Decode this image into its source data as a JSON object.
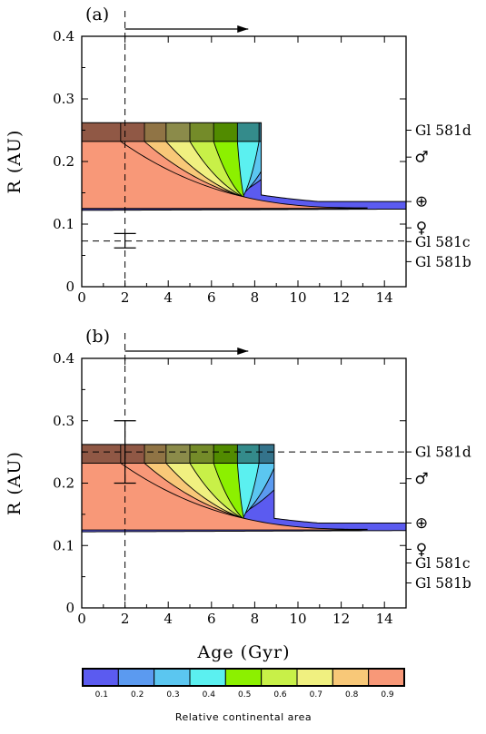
{
  "chart_data": [
    {
      "type": "area",
      "panel_label": "(a)",
      "xlabel": "",
      "ylabel": "R (AU)",
      "xlim": [
        0,
        15
      ],
      "ylim": [
        0,
        0.4
      ],
      "xticks": [
        "0",
        "2",
        "4",
        "6",
        "8",
        "10",
        "12",
        "14"
      ],
      "yticks": [
        "0",
        "0.1",
        "0.2",
        "0.3",
        "0.4"
      ],
      "age_marker": 2,
      "age_arrow_to": 7.7,
      "zone": {
        "inner_r": 0.122,
        "outer_r_start": 0.262,
        "outer_r_end": 0.136,
        "end_age": 15,
        "band_top": 0.262,
        "band_bottom": 0.232,
        "band_end_age": 8.3
      },
      "contour_ages": [
        1.8,
        2.9,
        3.9,
        5.0,
        6.1,
        7.2,
        8.2,
        9.0,
        10.0
      ],
      "contour_tip_ages": [
        3.9,
        5.6,
        6.7,
        7.8,
        8.8,
        9.9,
        11.0,
        12.1,
        13.2
      ],
      "planet_line": {
        "r": 0.073,
        "error": [
          0.062,
          0.085
        ]
      },
      "planet_labels": [
        {
          "text": "Gl 581d",
          "r": 0.25
        },
        {
          "text": "♂",
          "r": 0.207
        },
        {
          "text": "⊕",
          "r": 0.136
        },
        {
          "text": "♀",
          "r": 0.094
        },
        {
          "text": "Gl 581c",
          "r": 0.072
        },
        {
          "text": "Gl 581b",
          "r": 0.04
        }
      ]
    },
    {
      "type": "area",
      "panel_label": "(b)",
      "xlabel": "Age (Gyr)",
      "ylabel": "R (AU)",
      "xlim": [
        0,
        15
      ],
      "ylim": [
        0,
        0.4
      ],
      "xticks": [
        "0",
        "2",
        "4",
        "6",
        "8",
        "10",
        "12",
        "14"
      ],
      "yticks": [
        "0",
        "0.1",
        "0.2",
        "0.3",
        "0.4"
      ],
      "age_marker": 2,
      "age_arrow_to": 7.7,
      "zone": {
        "inner_r": 0.122,
        "outer_r_start": 0.262,
        "outer_r_end": 0.136,
        "end_age": 15,
        "band_top": 0.262,
        "band_bottom": 0.232,
        "band_end_age": 8.9
      },
      "contour_ages": [
        1.8,
        2.9,
        3.9,
        5.0,
        6.1,
        7.2,
        8.2,
        9.0,
        10.0
      ],
      "contour_tip_ages": [
        3.9,
        5.6,
        6.7,
        7.8,
        8.8,
        9.9,
        11.0,
        12.1,
        13.2
      ],
      "planet_line": {
        "r": 0.25,
        "error": [
          0.2,
          0.3
        ]
      },
      "planet_labels": [
        {
          "text": "Gl 581d",
          "r": 0.25
        },
        {
          "text": "♂",
          "r": 0.207
        },
        {
          "text": "⊕",
          "r": 0.136
        },
        {
          "text": "♀",
          "r": 0.094
        },
        {
          "text": "Gl 581c",
          "r": 0.072
        },
        {
          "text": "Gl 581b",
          "r": 0.04
        }
      ]
    }
  ],
  "colorbar": {
    "title": "Relative continental area",
    "ticks": [
      "0.1",
      "0.2",
      "0.3",
      "0.4",
      "0.5",
      "0.6",
      "0.7",
      "0.8",
      "0.9"
    ],
    "colors": [
      "#5b5bf0",
      "#5b9af0",
      "#5bc6f0",
      "#5bf0f0",
      "#8cf000",
      "#c8f048",
      "#f0f080",
      "#f8c878",
      "#f89878"
    ]
  }
}
